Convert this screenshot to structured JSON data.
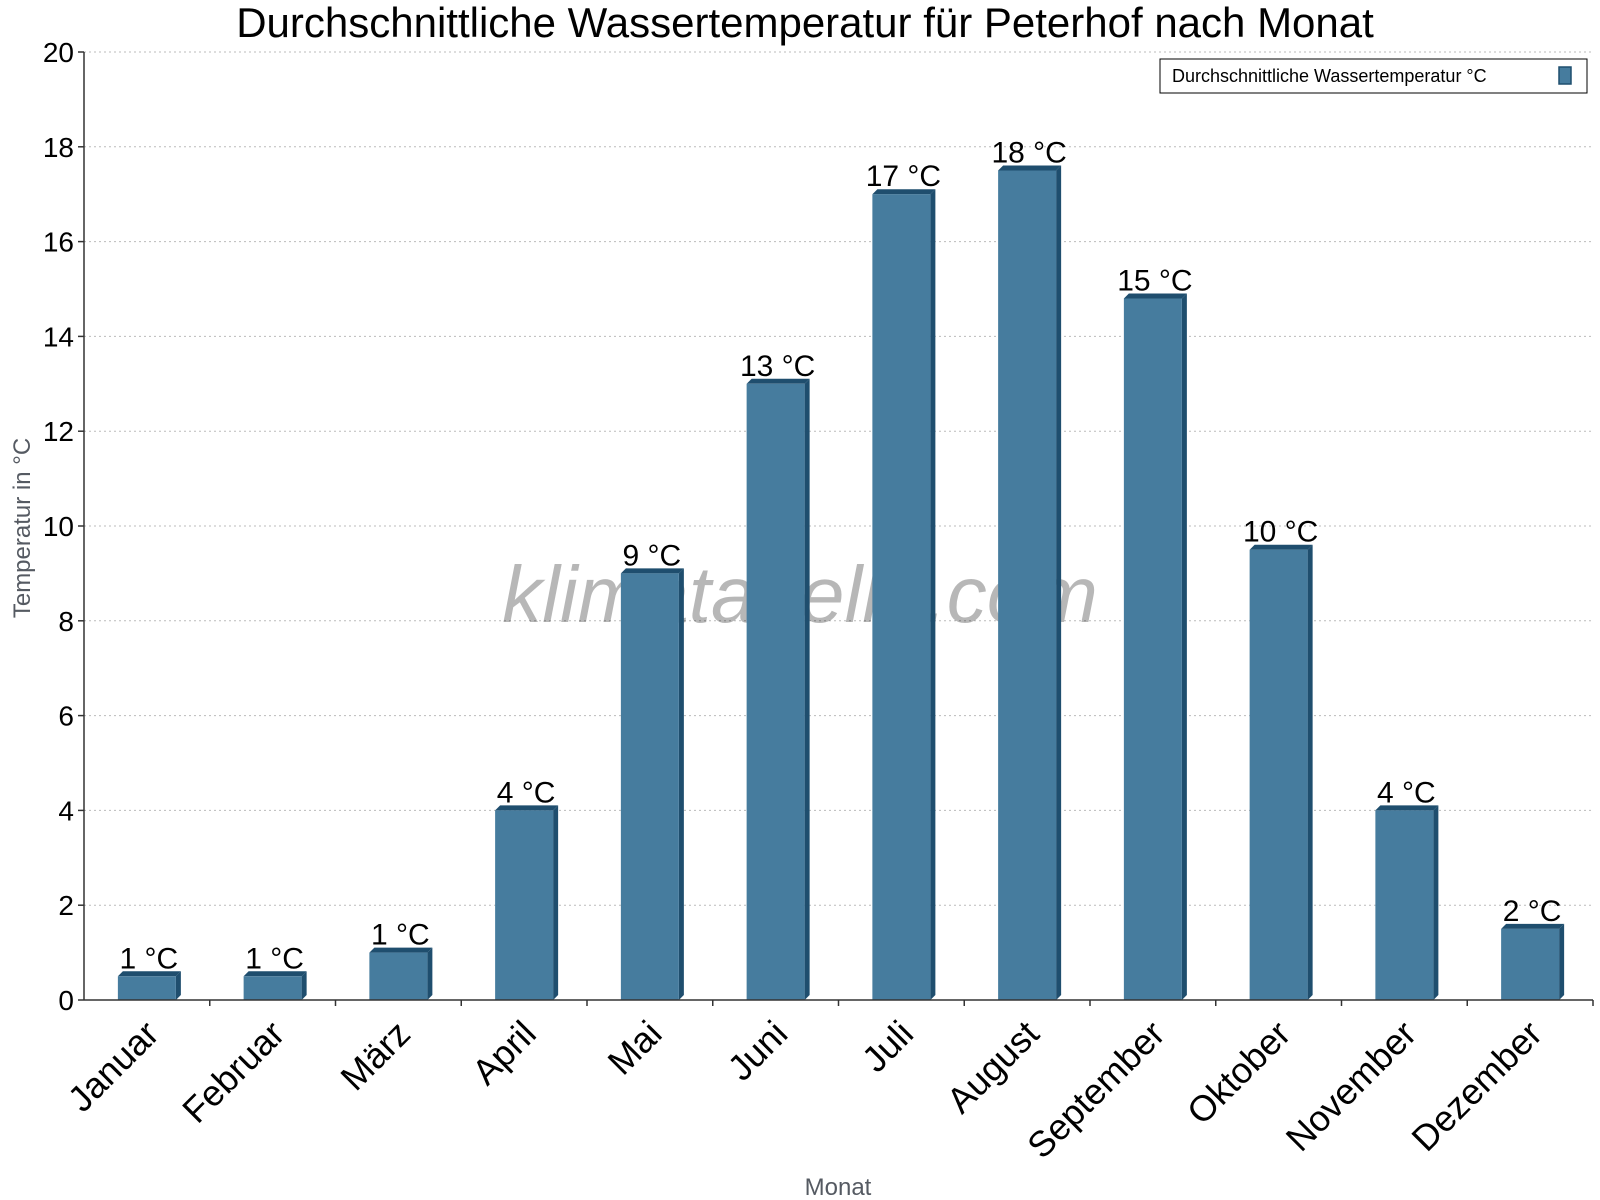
{
  "watermark": "klimatabelle.com",
  "chart_data": {
    "type": "bar",
    "title": "Durchschnittliche Wassertemperatur für Peterhof nach Monat",
    "xlabel": "Monat",
    "ylabel": "Temperatur in °C",
    "ylim": [
      0,
      20
    ],
    "yticks": [
      0,
      2,
      4,
      6,
      8,
      10,
      12,
      14,
      16,
      18,
      20
    ],
    "grid": true,
    "legend_position": "top-right",
    "categories": [
      "Januar",
      "Februar",
      "März",
      "April",
      "Mai",
      "Juni",
      "Juli",
      "August",
      "September",
      "Oktober",
      "November",
      "Dezember"
    ],
    "series": [
      {
        "name": "Durchschnittliche Wassertemperatur °C",
        "color": "#467c9e",
        "values": [
          0.5,
          0.5,
          1.0,
          4.0,
          9.0,
          13.0,
          17.0,
          17.5,
          14.8,
          9.5,
          4.0,
          1.5
        ],
        "labels": [
          "1 °C",
          "1 °C",
          "1 °C",
          "4 °C",
          "9 °C",
          "13 °C",
          "17 °C",
          "18 °C",
          "15 °C",
          "10 °C",
          "4 °C",
          "2 °C"
        ]
      }
    ]
  }
}
